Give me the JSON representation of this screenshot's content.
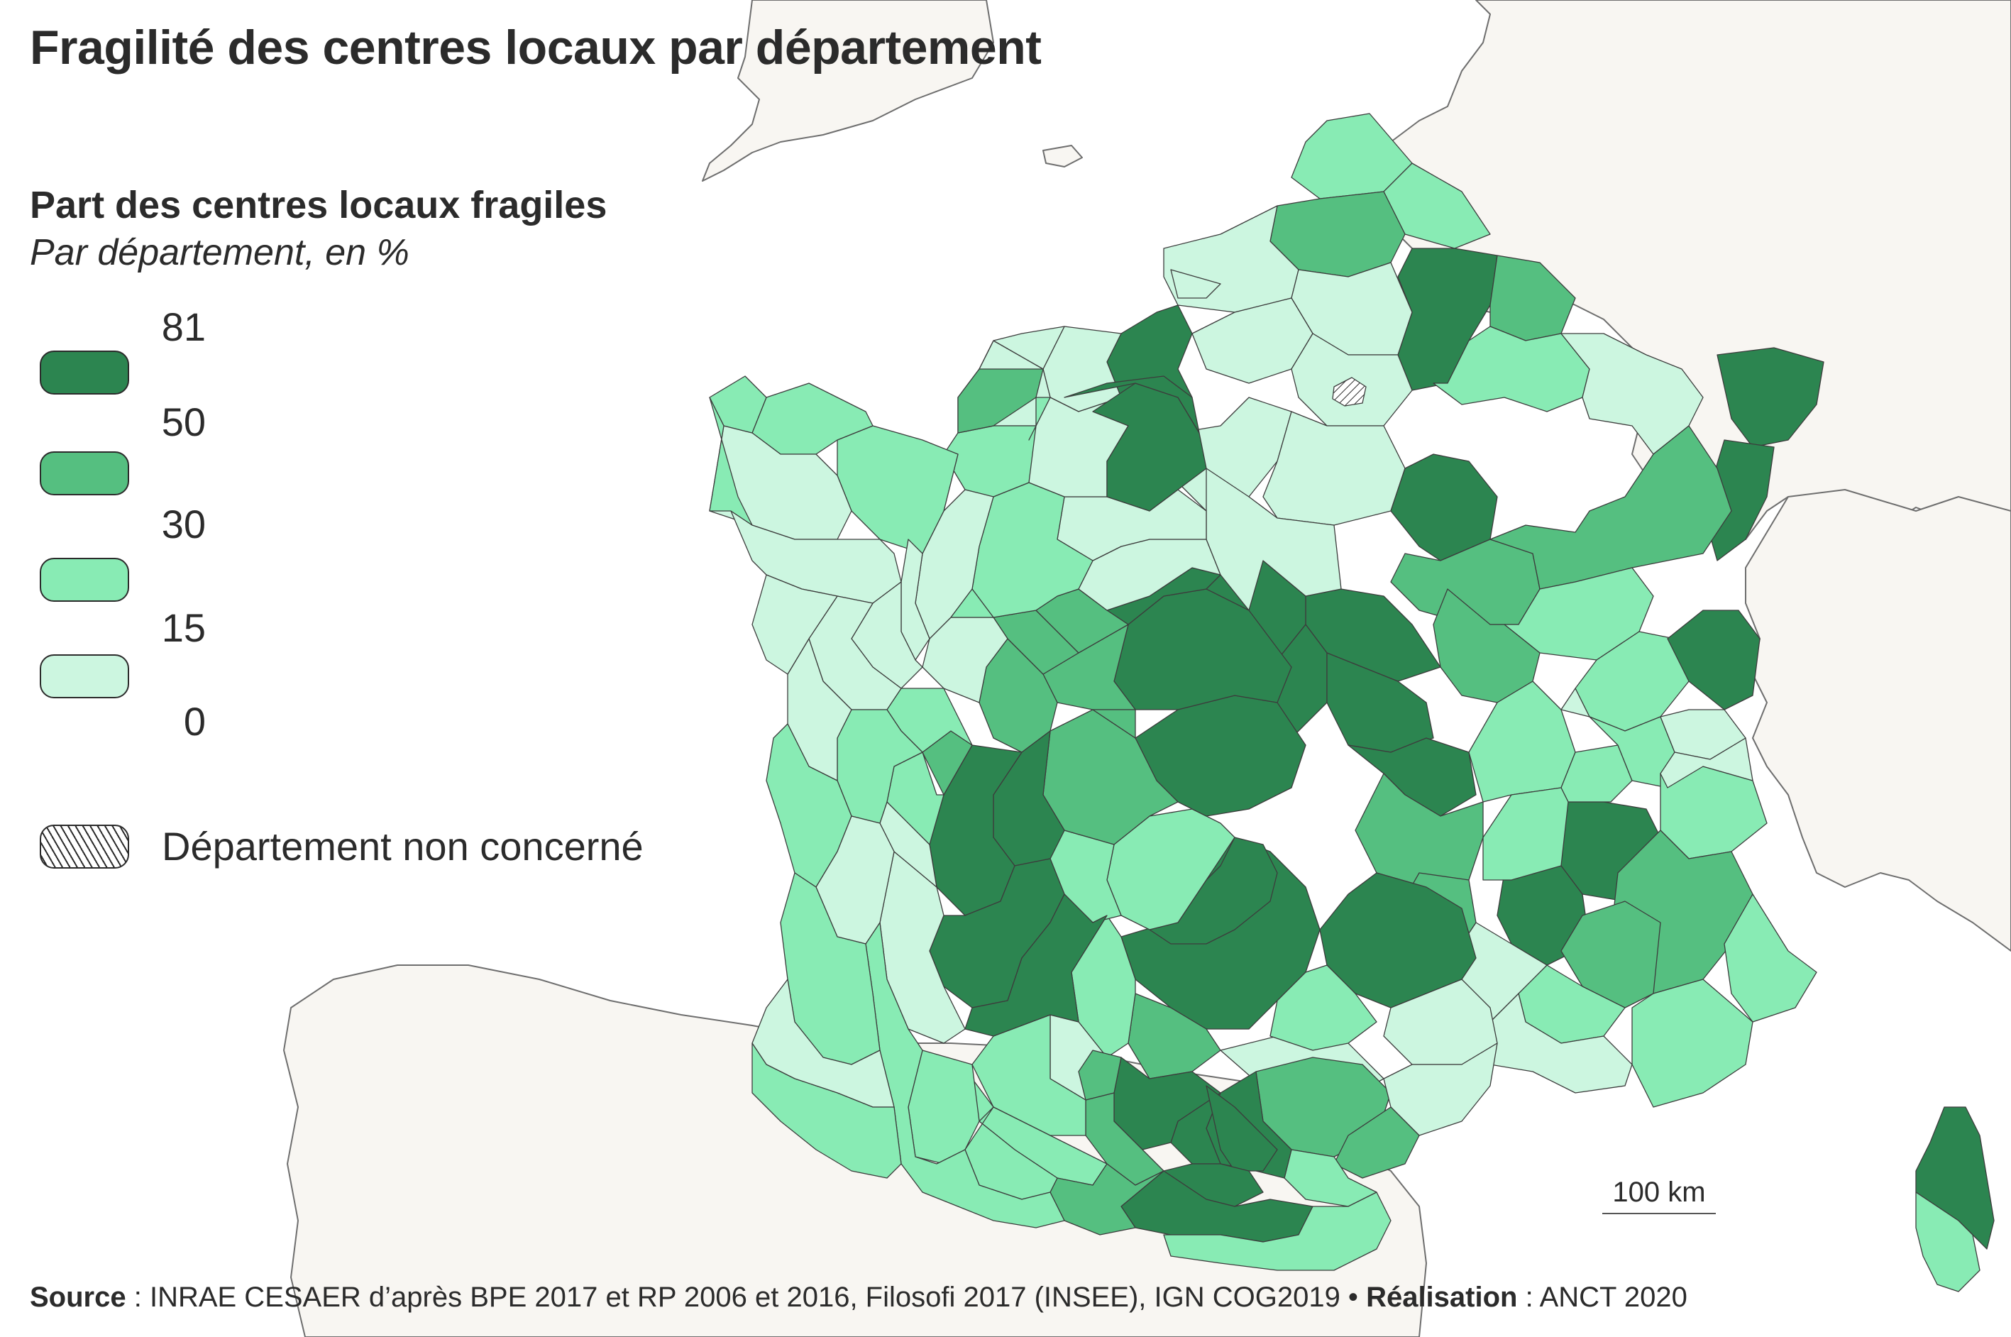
{
  "title": "Fragilité des centres locaux par département",
  "legend": {
    "title": "Part des centres locaux fragiles",
    "subtitle": "Par département, en %",
    "breaks": [
      "81",
      "50",
      "30",
      "15",
      "0"
    ],
    "classes": [
      {
        "range": "50–81",
        "color": "#2c8550"
      },
      {
        "range": "30–50",
        "color": "#55bf80"
      },
      {
        "range": "15–30",
        "color": "#88ebb4"
      },
      {
        "range": "0–15",
        "color": "#ccf6e0"
      }
    ],
    "hatch_label": "Département non concerné"
  },
  "scale_label": "100 km",
  "source": {
    "label": "Source",
    "text": " : INRAE CESAER d’après BPE 2017 et RP 2006 et 2016, Filosofi 2017 (INSEE), IGN COG2019 • ",
    "credit_label": "Réalisation",
    "credit_text": " : ANCT 2020"
  },
  "colors": {
    "class_50_81": "#2c8550",
    "class_30_50": "#55bf80",
    "class_15_30": "#88ebb4",
    "class_0_15": "#ccf6e0",
    "neighbor_land": "#f8f6f2",
    "sea": "#ffffff"
  },
  "icons": [
    "hatch-pattern-icon"
  ]
}
